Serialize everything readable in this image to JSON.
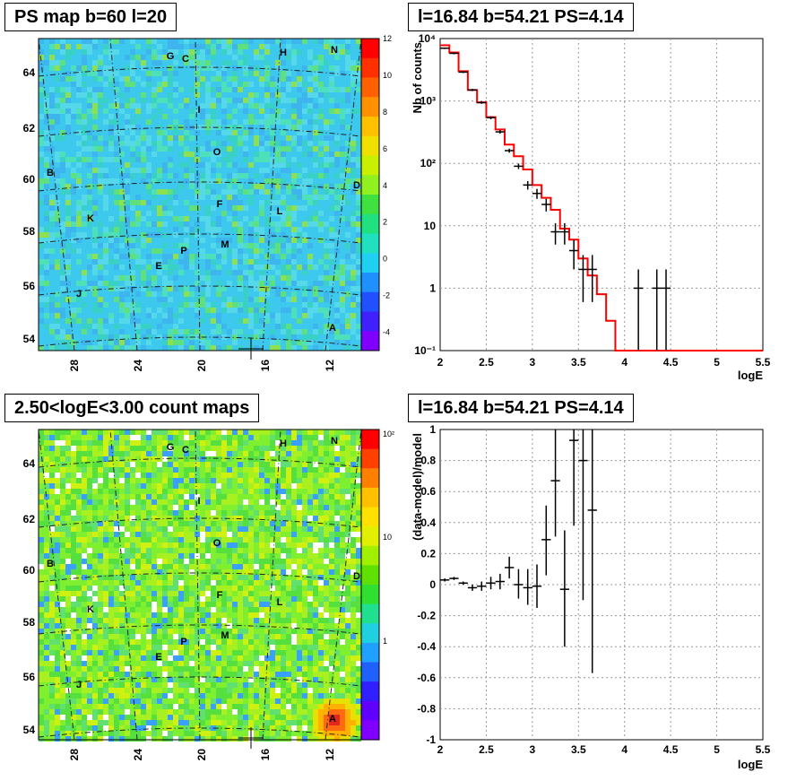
{
  "titles": {
    "top_left": "PS map b=60 l=20",
    "top_right": "l=16.84 b=54.21 PS=4.14",
    "bottom_left": "2.50<logE<3.00 count maps",
    "bottom_right": "l=16.84 b=54.21 PS=4.14"
  },
  "chart_data": [
    {
      "type": "heatmap",
      "title": "PS map b=60 l=20",
      "x_ticks": [
        "28",
        "24",
        "20",
        "16",
        "12"
      ],
      "y_ticks": [
        "64",
        "62",
        "60",
        "58",
        "56",
        "54"
      ],
      "colorbar_ticks": [
        "12",
        "10",
        "8",
        "6",
        "4",
        "2",
        "0",
        "-2",
        "-4"
      ],
      "colorbar_range": [
        -5,
        12
      ],
      "sources": [
        "G",
        "C",
        "H",
        "N",
        "I",
        "O",
        "B",
        "D",
        "F",
        "L",
        "K",
        "M",
        "P",
        "E",
        "J",
        "A"
      ]
    },
    {
      "type": "line",
      "title": "l=16.84 b=54.21 PS=4.14",
      "xlabel": "logE",
      "ylabel": "Nb of counts",
      "yscale": "log",
      "xlim": [
        2,
        5.5
      ],
      "ylim": [
        0.1,
        10000
      ],
      "x_ticks": [
        "2",
        "2.5",
        "3",
        "3.5",
        "4",
        "4.5",
        "5",
        "5.5"
      ],
      "y_ticks": [
        "10^-1",
        "1",
        "10",
        "10^2",
        "10^3",
        "10^4"
      ],
      "grid": true,
      "series": [
        {
          "style": "step",
          "color": "#ff0000",
          "bin_edges": [
            2.0,
            2.1,
            2.2,
            2.3,
            2.4,
            2.5,
            2.6,
            2.7,
            2.8,
            2.9,
            3.0,
            3.1,
            3.2,
            3.3,
            3.4,
            3.5,
            3.6,
            3.7,
            3.8,
            3.9,
            4.0,
            4.1,
            4.2,
            4.3,
            4.4,
            4.5,
            4.6,
            4.7,
            4.8,
            4.9,
            5.0,
            5.1,
            5.2,
            5.3,
            5.4,
            5.5
          ],
          "values": [
            7800,
            6000,
            3000,
            1500,
            950,
            550,
            350,
            200,
            130,
            80,
            45,
            28,
            18,
            9,
            6,
            3,
            1.6,
            0.8,
            0.3,
            0.1,
            0.1,
            0.1,
            0.1,
            0.1,
            0.1,
            0.1,
            0.1,
            0.1,
            0.1,
            0.1,
            0.1,
            0.1,
            0.1,
            0.1,
            0.1
          ]
        },
        {
          "style": "errorbar",
          "color": "#000000",
          "points": [
            {
              "x": 2.05,
              "y": 7000,
              "lo": 6800,
              "hi": 7200
            },
            {
              "x": 2.15,
              "y": 5800,
              "lo": 5600,
              "hi": 6000
            },
            {
              "x": 2.25,
              "y": 2900,
              "lo": 2800,
              "hi": 3000
            },
            {
              "x": 2.35,
              "y": 1500,
              "lo": 1440,
              "hi": 1560
            },
            {
              "x": 2.45,
              "y": 940,
              "lo": 900,
              "hi": 980
            },
            {
              "x": 2.55,
              "y": 540,
              "lo": 510,
              "hi": 570
            },
            {
              "x": 2.65,
              "y": 320,
              "lo": 300,
              "hi": 340
            },
            {
              "x": 2.75,
              "y": 160,
              "lo": 148,
              "hi": 172
            },
            {
              "x": 2.85,
              "y": 90,
              "lo": 81,
              "hi": 99
            },
            {
              "x": 2.95,
              "y": 45,
              "lo": 38,
              "hi": 52
            },
            {
              "x": 3.05,
              "y": 33,
              "lo": 27,
              "hi": 39
            },
            {
              "x": 3.15,
              "y": 22,
              "lo": 17,
              "hi": 27
            },
            {
              "x": 3.25,
              "y": 8,
              "lo": 5,
              "hi": 11
            },
            {
              "x": 3.35,
              "y": 8,
              "lo": 5,
              "hi": 11
            },
            {
              "x": 3.45,
              "y": 4,
              "lo": 2,
              "hi": 6
            },
            {
              "x": 3.55,
              "y": 2,
              "lo": 0.6,
              "hi": 3.4
            },
            {
              "x": 3.65,
              "y": 2,
              "lo": 0.6,
              "hi": 3.4
            },
            {
              "x": 4.15,
              "y": 1,
              "lo": 0.1,
              "hi": 2
            },
            {
              "x": 4.35,
              "y": 1,
              "lo": 0.1,
              "hi": 2
            },
            {
              "x": 4.45,
              "y": 1,
              "lo": 0.1,
              "hi": 2
            }
          ]
        }
      ]
    },
    {
      "type": "heatmap",
      "title": "2.50<logE<3.00 count maps",
      "x_ticks": [
        "28",
        "24",
        "20",
        "16",
        "12"
      ],
      "y_ticks": [
        "64",
        "62",
        "60",
        "58",
        "56",
        "54"
      ],
      "colorbar_ticks": [
        "10^2",
        "10",
        "1"
      ],
      "colorbar_scale": "log",
      "sources": [
        "G",
        "C",
        "H",
        "N",
        "I",
        "O",
        "B",
        "D",
        "F",
        "L",
        "K",
        "M",
        "P",
        "E",
        "J",
        "A"
      ]
    },
    {
      "type": "scatter",
      "title": "l=16.84 b=54.21 PS=4.14",
      "xlabel": "logE",
      "ylabel": "(data-model)/model",
      "xlim": [
        2,
        5.5
      ],
      "ylim": [
        -1,
        1
      ],
      "x_ticks": [
        "2",
        "2.5",
        "3",
        "3.5",
        "4",
        "4.5",
        "5",
        "5.5"
      ],
      "y_ticks": [
        "1",
        "0.8",
        "0.6",
        "0.4",
        "0.2",
        "0",
        "-0.2",
        "-0.4",
        "-0.6",
        "-0.8",
        "-1"
      ],
      "grid": true,
      "points": [
        {
          "x": 2.05,
          "y": 0.03,
          "lo": 0.02,
          "hi": 0.04
        },
        {
          "x": 2.15,
          "y": 0.04,
          "lo": 0.03,
          "hi": 0.05
        },
        {
          "x": 2.25,
          "y": 0.01,
          "lo": 0.0,
          "hi": 0.02
        },
        {
          "x": 2.35,
          "y": -0.02,
          "lo": -0.04,
          "hi": 0.0
        },
        {
          "x": 2.45,
          "y": -0.01,
          "lo": -0.04,
          "hi": 0.02
        },
        {
          "x": 2.55,
          "y": 0.01,
          "lo": -0.03,
          "hi": 0.05
        },
        {
          "x": 2.65,
          "y": 0.02,
          "lo": -0.03,
          "hi": 0.07
        },
        {
          "x": 2.75,
          "y": 0.11,
          "lo": 0.04,
          "hi": 0.18
        },
        {
          "x": 2.85,
          "y": 0.0,
          "lo": -0.09,
          "hi": 0.1
        },
        {
          "x": 2.95,
          "y": -0.02,
          "lo": -0.13,
          "hi": 0.1
        },
        {
          "x": 3.05,
          "y": -0.01,
          "lo": -0.15,
          "hi": 0.13
        },
        {
          "x": 3.15,
          "y": 0.29,
          "lo": 0.06,
          "hi": 0.51
        },
        {
          "x": 3.25,
          "y": 0.67,
          "lo": 0.31,
          "hi": 1.0
        },
        {
          "x": 3.35,
          "y": -0.03,
          "lo": -0.4,
          "hi": 0.35
        },
        {
          "x": 3.45,
          "y": 0.93,
          "lo": 0.38,
          "hi": 1.0
        },
        {
          "x": 3.55,
          "y": 0.8,
          "lo": -0.1,
          "hi": 1.0
        },
        {
          "x": 3.65,
          "y": 0.48,
          "lo": -0.57,
          "hi": 1.0
        }
      ]
    }
  ]
}
